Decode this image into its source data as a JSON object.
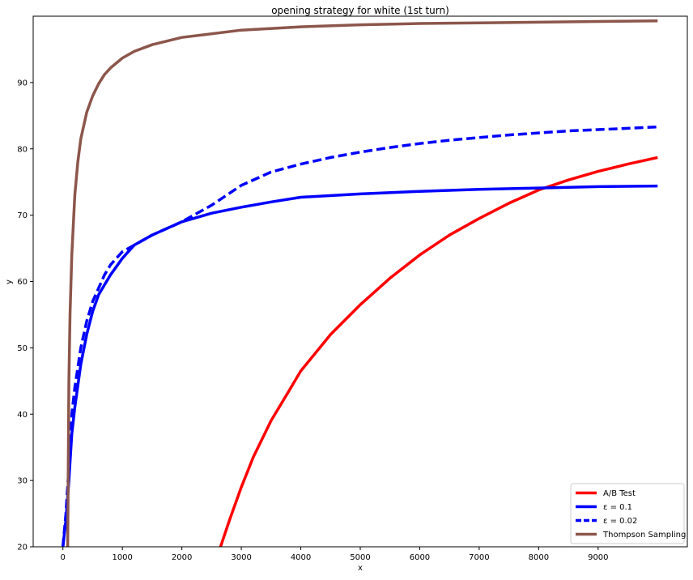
{
  "chart_data": {
    "type": "line",
    "title": "opening strategy for white (1st turn)",
    "xlabel": "x",
    "ylabel": "y",
    "xlim": [
      -500,
      10500
    ],
    "ylim": [
      20,
      100
    ],
    "xticks": [
      0,
      1000,
      2000,
      3000,
      4000,
      5000,
      6000,
      7000,
      8000,
      9000
    ],
    "yticks": [
      20,
      30,
      40,
      50,
      60,
      70,
      80,
      90
    ],
    "grid": false,
    "legend_position": "lower-right",
    "series": [
      {
        "name": "A/B Test",
        "color": "#ff0000",
        "dash": "solid",
        "x": [
          2650,
          2800,
          3000,
          3200,
          3500,
          3800,
          4000,
          4500,
          5000,
          5500,
          6000,
          6500,
          7000,
          7500,
          8000,
          8500,
          9000,
          9500,
          10000
        ],
        "y": [
          20,
          24,
          29,
          33.5,
          39,
          43.5,
          46.5,
          52,
          56.5,
          60.5,
          64,
          67,
          69.5,
          71.8,
          73.8,
          75.3,
          76.6,
          77.7,
          78.7
        ]
      },
      {
        "name": "ε = 0.1",
        "color": "#0000ff",
        "dash": "solid",
        "x": [
          0,
          50,
          100,
          150,
          200,
          300,
          400,
          500,
          600,
          700,
          800,
          1000,
          1200,
          1500,
          2000,
          2500,
          3000,
          3500,
          4000,
          5000,
          6000,
          7000,
          8000,
          9000,
          10000
        ],
        "y": [
          20,
          24,
          30,
          37,
          41,
          47.5,
          52,
          55.5,
          58,
          59.5,
          61,
          63.5,
          65.5,
          67,
          69,
          70.3,
          71.2,
          72,
          72.7,
          73.2,
          73.6,
          73.9,
          74.1,
          74.3,
          74.4
        ]
      },
      {
        "name": "ε = 0.02",
        "color": "#0000ff",
        "dash": "dashed",
        "x": [
          0,
          50,
          100,
          150,
          200,
          300,
          400,
          500,
          600,
          700,
          800,
          900,
          1000,
          1200,
          1500,
          2000,
          2500,
          3000,
          3500,
          4000,
          4500,
          5000,
          5500,
          6000,
          6500,
          7000,
          7500,
          8000,
          8500,
          9000,
          9500,
          10000
        ],
        "y": [
          20,
          25,
          32,
          40,
          44,
          50,
          54,
          57,
          59,
          61,
          62.5,
          63.5,
          64.5,
          65.5,
          67,
          69,
          71.5,
          74.5,
          76.5,
          77.7,
          78.7,
          79.5,
          80.2,
          80.8,
          81.3,
          81.7,
          82.1,
          82.4,
          82.7,
          82.9,
          83.1,
          83.3
        ]
      },
      {
        "name": "Thompson Sampling",
        "color": "#8c564b",
        "dash": "solid",
        "x": [
          80,
          100,
          120,
          150,
          200,
          250,
          300,
          400,
          500,
          600,
          700,
          800,
          1000,
          1200,
          1500,
          2000,
          3000,
          4000,
          5000,
          6000,
          7000,
          8000,
          9000,
          10000
        ],
        "y": [
          20,
          45,
          55,
          64,
          73,
          78,
          81.5,
          85.5,
          88,
          89.8,
          91.2,
          92.2,
          93.7,
          94.7,
          95.7,
          96.8,
          97.9,
          98.4,
          98.7,
          98.9,
          99.0,
          99.1,
          99.2,
          99.3
        ]
      }
    ]
  }
}
